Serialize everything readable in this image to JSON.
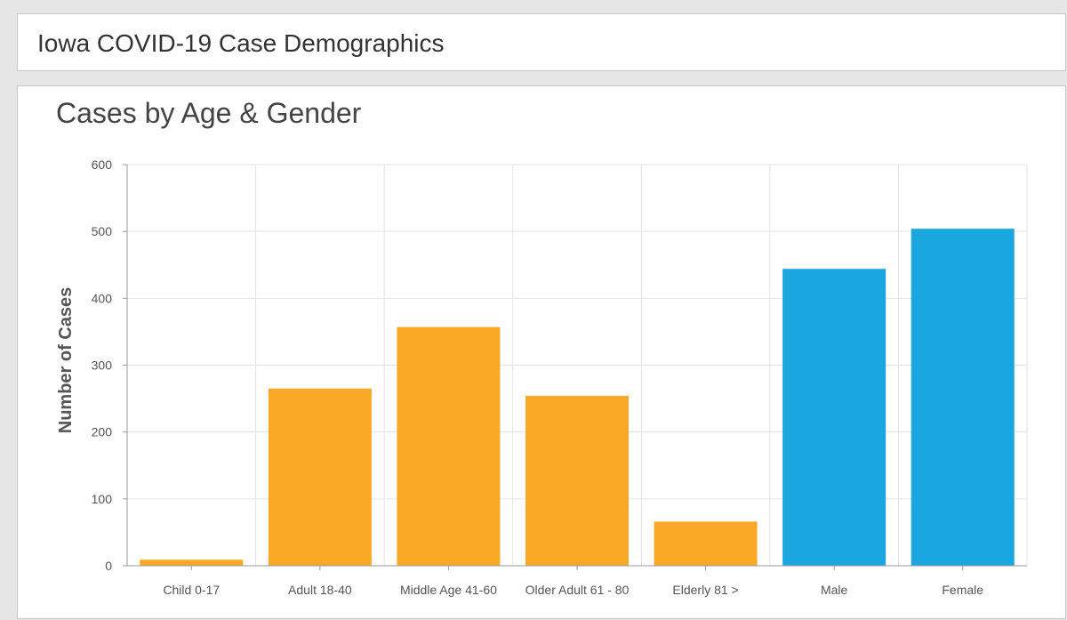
{
  "header": {
    "title": "Iowa COVID-19 Case Demographics"
  },
  "colors": {
    "age": "#f9a825",
    "gender": "#1aa7e0",
    "grid": "#e3e3e3",
    "axis": "#999999"
  },
  "chart_data": {
    "type": "bar",
    "title": "Cases by Age & Gender",
    "xlabel": "",
    "ylabel": "Number of Cases",
    "ylim": [
      0,
      600
    ],
    "yticks": [
      0,
      100,
      200,
      300,
      400,
      500,
      600
    ],
    "grid": true,
    "categories": [
      "Child 0-17",
      "Adult 18-40",
      "Middle Age 41-60",
      "Older Adult 61 - 80",
      "Elderly 81 >",
      "Male",
      "Female"
    ],
    "values": [
      9,
      265,
      357,
      254,
      66,
      444,
      504
    ],
    "groups": [
      "age",
      "age",
      "age",
      "age",
      "age",
      "gender",
      "gender"
    ]
  }
}
